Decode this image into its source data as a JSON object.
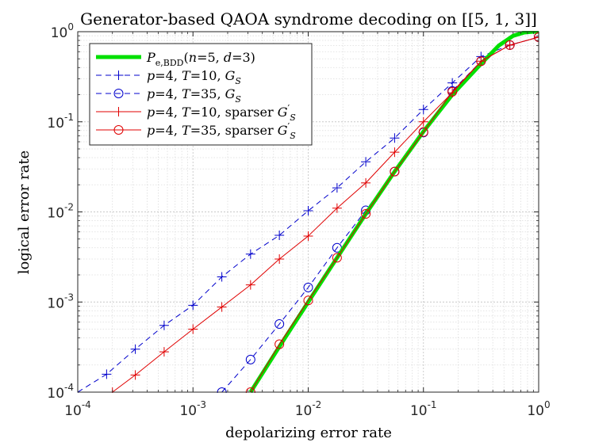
{
  "chart_data": {
    "type": "line",
    "title": "Generator-based QAOA syndrome decoding on [[5, 1, 3]]",
    "xlabel": "depolarizing error rate",
    "ylabel": "logical error rate",
    "xscale": "log",
    "yscale": "log",
    "xlim": [
      0.0001,
      1
    ],
    "ylim": [
      0.0001,
      1
    ],
    "grid": true,
    "legend_position": "top-left",
    "x_ticks": [
      {
        "value": 0.0001,
        "base": "10",
        "exp": "-4"
      },
      {
        "value": 0.001,
        "base": "10",
        "exp": "-3"
      },
      {
        "value": 0.01,
        "base": "10",
        "exp": "-2"
      },
      {
        "value": 0.1,
        "base": "10",
        "exp": "-1"
      },
      {
        "value": 1,
        "base": "10",
        "exp": "0"
      }
    ],
    "y_ticks": [
      {
        "value": 0.0001,
        "base": "10",
        "exp": "-4"
      },
      {
        "value": 0.001,
        "base": "10",
        "exp": "-3"
      },
      {
        "value": 0.01,
        "base": "10",
        "exp": "-2"
      },
      {
        "value": 0.1,
        "base": "10",
        "exp": "-1"
      },
      {
        "value": 1,
        "base": "10",
        "exp": "0"
      }
    ],
    "series": [
      {
        "id": "bdd",
        "name": "P_e,BDD(n=5, d=3)",
        "color": "#00e000",
        "dash": "solid",
        "marker": "none",
        "x": [
          0.00316,
          0.00562,
          0.01,
          0.0178,
          0.0316,
          0.0562,
          0.1,
          0.178,
          0.316,
          0.45,
          0.6,
          0.75,
          0.9,
          1.0
        ],
        "y": [
          0.0001,
          0.00032,
          0.001,
          0.0031,
          0.0095,
          0.028,
          0.078,
          0.2,
          0.44,
          0.7,
          0.9,
          0.98,
          1.0,
          1.0
        ]
      },
      {
        "id": "p4t10",
        "name": "p=4, T=10, G_S",
        "color": "#0000cc",
        "dash": "dashed",
        "marker": "plus",
        "x": [
          0.0001,
          0.000178,
          0.000316,
          0.000562,
          0.001,
          0.00178,
          0.00316,
          0.00562,
          0.01,
          0.0178,
          0.0316,
          0.0562,
          0.1,
          0.178,
          0.316,
          0.562,
          1.0
        ],
        "y": [
          0.0001,
          0.000158,
          0.0003,
          0.00055,
          0.00092,
          0.0019,
          0.0034,
          0.0055,
          0.0103,
          0.0185,
          0.036,
          0.066,
          0.137,
          0.27,
          0.53,
          0.71,
          0.87
        ]
      },
      {
        "id": "p4t35",
        "name": "p=4, T=35, G_S",
        "color": "#0000cc",
        "dash": "dashed",
        "marker": "circle",
        "x": [
          0.00178,
          0.00316,
          0.00562,
          0.01,
          0.0178,
          0.0316,
          0.0562,
          0.1,
          0.178,
          0.316,
          0.562,
          1.0
        ],
        "y": [
          0.0001,
          0.00023,
          0.00057,
          0.00145,
          0.004,
          0.0104,
          0.028,
          0.076,
          0.22,
          0.47,
          0.71,
          0.87
        ]
      },
      {
        "id": "p4t10s",
        "name": "p=4, T=10, sparser G'_S",
        "color": "#e00000",
        "dash": "solid",
        "marker": "plus",
        "x": [
          0.0002,
          0.000316,
          0.000562,
          0.001,
          0.00178,
          0.00316,
          0.00562,
          0.01,
          0.0178,
          0.0316,
          0.0562,
          0.1,
          0.178,
          0.316,
          0.562,
          1.0
        ],
        "y": [
          0.0001,
          0.000155,
          0.00028,
          0.0005,
          0.00088,
          0.00155,
          0.003,
          0.0054,
          0.011,
          0.021,
          0.046,
          0.1,
          0.21,
          0.47,
          0.71,
          0.87
        ]
      },
      {
        "id": "p4t35s",
        "name": "p=4, T=35, sparser G'_S",
        "color": "#e00000",
        "dash": "solid",
        "marker": "circle",
        "x": [
          0.00316,
          0.00562,
          0.01,
          0.0178,
          0.0316,
          0.0562,
          0.1,
          0.178,
          0.316,
          0.562,
          1.0
        ],
        "y": [
          0.0001,
          0.00034,
          0.00104,
          0.0031,
          0.0095,
          0.028,
          0.077,
          0.215,
          0.47,
          0.71,
          0.87
        ]
      }
    ]
  },
  "legend": {
    "entries": [
      {
        "series": "bdd",
        "parts": [
          {
            "t": "P",
            "i": true
          },
          {
            "t": "e,BDD",
            "sub": true
          },
          {
            "t": "("
          },
          {
            "t": "n",
            "i": true
          },
          {
            "t": "=5, "
          },
          {
            "t": "d",
            "i": true
          },
          {
            "t": "=3)"
          }
        ]
      },
      {
        "series": "p4t10",
        "parts": [
          {
            "t": "p",
            "i": true
          },
          {
            "t": "=4, "
          },
          {
            "t": "T",
            "i": true
          },
          {
            "t": "=10, "
          },
          {
            "t": "G",
            "i": true
          },
          {
            "t": "S",
            "sub": true,
            "i": true
          }
        ]
      },
      {
        "series": "p4t35",
        "parts": [
          {
            "t": "p",
            "i": true
          },
          {
            "t": "=4, "
          },
          {
            "t": "T",
            "i": true
          },
          {
            "t": "=35, "
          },
          {
            "t": "G",
            "i": true
          },
          {
            "t": "S",
            "sub": true,
            "i": true
          }
        ]
      },
      {
        "series": "p4t10s",
        "parts": [
          {
            "t": "p",
            "i": true
          },
          {
            "t": "=4, "
          },
          {
            "t": "T",
            "i": true
          },
          {
            "t": "=10, sparser "
          },
          {
            "t": "G",
            "i": true
          },
          {
            "t": "′",
            "sup": true
          },
          {
            "t": "S",
            "sub": true,
            "i": true
          }
        ]
      },
      {
        "series": "p4t35s",
        "parts": [
          {
            "t": "p",
            "i": true
          },
          {
            "t": "=4, "
          },
          {
            "t": "T",
            "i": true
          },
          {
            "t": "=35, sparser "
          },
          {
            "t": "G",
            "i": true
          },
          {
            "t": "′",
            "sup": true
          },
          {
            "t": "S",
            "sub": true,
            "i": true
          }
        ]
      }
    ]
  }
}
